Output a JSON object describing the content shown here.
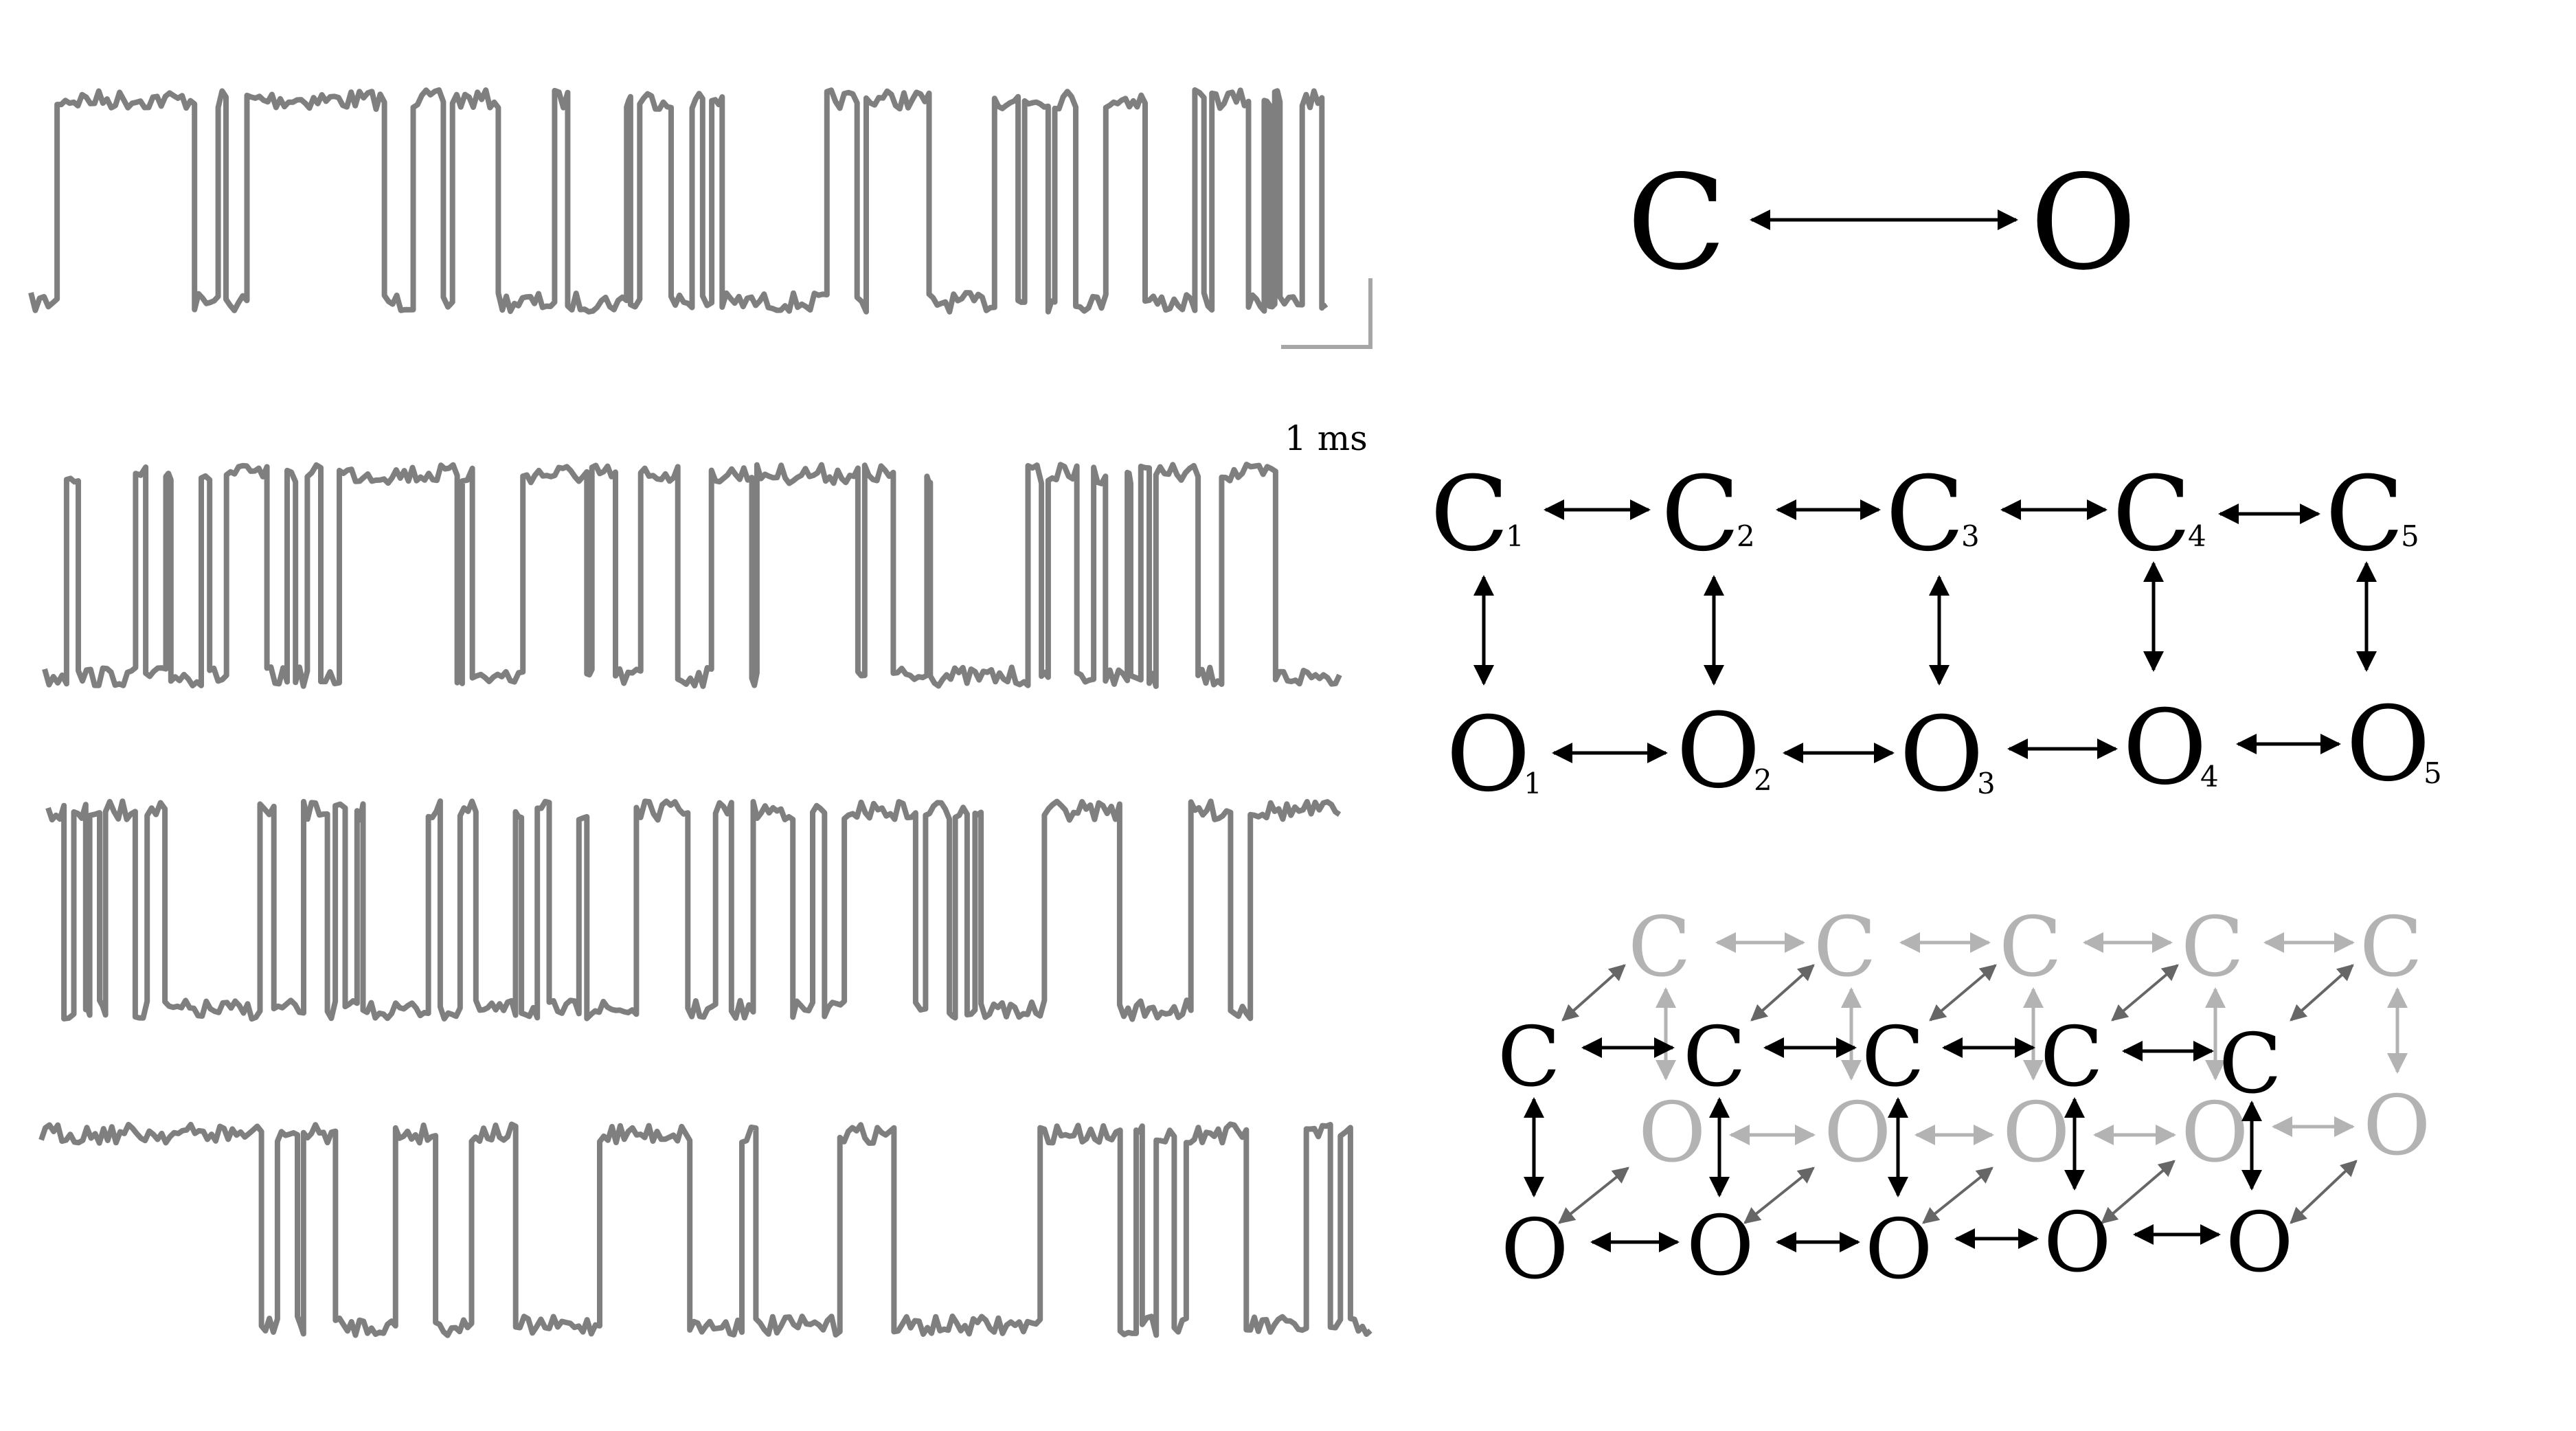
{
  "colors": {
    "trace": "#7f7f7f",
    "ink": "#000000",
    "faded": "#b3b3b3",
    "faded_arrow": "#666666"
  },
  "traces": [
    {
      "name": "trace-1",
      "initial_state": "closed",
      "dwell_times_ms": [
        0.2,
        1.05,
        0.18,
        0.06,
        0.16,
        1.05,
        0.22,
        0.23,
        0.07,
        0.35,
        0.43,
        0.1,
        0.45,
        0.03,
        0.07,
        0.24,
        0.16,
        0.08,
        0.07,
        0.08,
        0.8,
        0.23,
        0.07,
        0.48,
        0.5,
        0.18,
        0.05,
        0.18,
        0.05,
        0.16,
        0.23,
        0.3,
        0.38,
        0.07,
        0.06,
        0.28,
        0.12,
        0.04,
        0.04,
        0.04,
        0.17,
        0.15,
        0.03
      ]
    },
    {
      "name": "trace-2",
      "initial_state": "closed",
      "dwell_times_ms": [
        0.13,
        0.07,
        0.34,
        0.06,
        0.12,
        0.03,
        0.18,
        0.05,
        0.1,
        0.24,
        0.12,
        0.05,
        0.07,
        0.08,
        0.11,
        0.7,
        0.03,
        0.06,
        0.3,
        0.38,
        0.03,
        0.14,
        0.15,
        0.22,
        0.2,
        0.24,
        0.03,
        0.6,
        0.04,
        0.17,
        0.2,
        0.02,
        0.58,
        0.08,
        0.04,
        0.17,
        0.1,
        0.07,
        0.13,
        0.02,
        0.06,
        0.05,
        0.04,
        0.25,
        0.14,
        0.32,
        0.38
      ]
    },
    {
      "name": "trace-3",
      "initial_state": "open",
      "dwell_times_ms": [
        0.08,
        0.05,
        0.06,
        0.02,
        0.05,
        0.03,
        0.15,
        0.06,
        0.09,
        0.48,
        0.07,
        0.15,
        0.12,
        0.04,
        0.05,
        0.06,
        0.03,
        0.33,
        0.06,
        0.1,
        0.08,
        0.2,
        0.03,
        0.08,
        0.06,
        0.15,
        0.04,
        0.25,
        0.26,
        0.14,
        0.08,
        0.11,
        0.2,
        0.1,
        0.06,
        0.1,
        0.36,
        0.05,
        0.12,
        0.03,
        0.06,
        0.04,
        0.03,
        0.32,
        0.38,
        0.36,
        0.2,
        0.1,
        0.45
      ]
    },
    {
      "name": "trace-4",
      "initial_state": "open",
      "dwell_times_ms": [
        1.1,
        0.08,
        0.1,
        0.03,
        0.16,
        0.3,
        0.2,
        0.18,
        0.22,
        0.42,
        0.45,
        0.26,
        0.07,
        0.42,
        0.27,
        0.73,
        0.4,
        0.08,
        0.03,
        0.07,
        0.09,
        0.06,
        0.3,
        0.3,
        0.12,
        0.05,
        0.05,
        0.1
      ]
    }
  ],
  "scale_bar": {
    "label": "1 ms"
  },
  "scheme_two_state": {
    "closed_label": "C",
    "open_label": "O"
  },
  "scheme_chain": {
    "closed": [
      {
        "label": "C",
        "sub": "1"
      },
      {
        "label": "C",
        "sub": "2"
      },
      {
        "label": "C",
        "sub": "3"
      },
      {
        "label": "C",
        "sub": "4"
      },
      {
        "label": "C",
        "sub": "5"
      }
    ],
    "open": [
      {
        "label": "O",
        "sub": "1"
      },
      {
        "label": "O",
        "sub": "2"
      },
      {
        "label": "O",
        "sub": "3"
      },
      {
        "label": "O",
        "sub": "4"
      },
      {
        "label": "O",
        "sub": "5"
      }
    ]
  },
  "scheme_ladder": {
    "back_closed": [
      "C",
      "C",
      "C",
      "C",
      "C"
    ],
    "back_open": [
      "O",
      "O",
      "O",
      "O",
      "O"
    ],
    "front_closed": [
      "C",
      "C",
      "C",
      "C",
      "C"
    ],
    "front_open": [
      "O",
      "O",
      "O",
      "O",
      "O"
    ]
  }
}
